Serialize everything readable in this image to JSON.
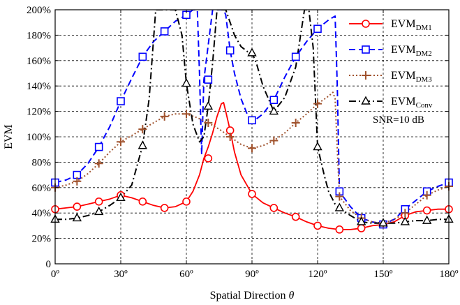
{
  "chart_data": {
    "type": "line",
    "title": "",
    "xlabel": "Spatial Direction",
    "xlabel_symbol": "θ",
    "ylabel": "EVM",
    "xlim": [
      0,
      180
    ],
    "ylim": [
      0,
      200
    ],
    "x_ticks": [
      0,
      30,
      60,
      90,
      120,
      150,
      180
    ],
    "x_tick_labels": [
      "0º",
      "30º",
      "60º",
      "90º",
      "120º",
      "150º",
      "180º"
    ],
    "y_ticks": [
      0,
      20,
      40,
      60,
      80,
      100,
      120,
      140,
      160,
      180,
      200
    ],
    "y_tick_labels": [
      "0",
      "20%",
      "40%",
      "60%",
      "80%",
      "100%",
      "120%",
      "140%",
      "160%",
      "180%",
      "200%"
    ],
    "grid": true,
    "legend_position": "top-right",
    "annotation": "SNR=10 dB",
    "series": [
      {
        "name": "EVM",
        "subscript": "DM1",
        "color": "#ff0000",
        "dash": "solid",
        "marker": "circle",
        "x": [
          0,
          5,
          10,
          15,
          20,
          25,
          30,
          35,
          40,
          45,
          50,
          55,
          60,
          63,
          66,
          68,
          70,
          72,
          74,
          76,
          77,
          78,
          80,
          82,
          85,
          90,
          95,
          100,
          105,
          110,
          115,
          120,
          125,
          130,
          135,
          140,
          145,
          150,
          155,
          160,
          165,
          170,
          175,
          180
        ],
        "y": [
          43,
          44,
          45,
          47,
          49,
          51,
          54,
          52,
          49,
          46,
          44,
          45,
          49,
          57,
          70,
          83,
          92,
          103,
          116,
          126,
          127,
          120,
          105,
          88,
          70,
          55,
          48,
          44,
          40,
          37,
          33,
          30,
          28,
          27,
          27,
          28,
          30,
          31,
          33,
          38,
          41,
          42,
          43,
          43
        ],
        "marker_x": [
          0,
          10,
          20,
          30,
          40,
          50,
          60,
          70,
          80,
          90,
          100,
          110,
          120,
          130,
          140,
          150,
          160,
          170,
          180
        ],
        "marker_y": [
          43,
          45,
          49,
          54,
          49,
          44,
          49,
          83,
          105,
          55,
          44,
          37,
          30,
          27,
          28,
          31,
          38,
          42,
          43
        ]
      },
      {
        "name": "EVM",
        "subscript": "DM2",
        "color": "#0000ff",
        "dash": "dash",
        "marker": "square",
        "x": [
          0,
          5,
          10,
          15,
          20,
          25,
          30,
          35,
          40,
          45,
          50,
          55,
          60,
          63,
          65,
          66,
          67,
          68,
          72,
          75,
          77,
          78,
          80,
          82,
          85,
          88,
          90,
          92,
          95,
          100,
          105,
          110,
          115,
          120,
          125,
          127,
          128,
          129,
          130,
          135,
          140,
          145,
          150,
          155,
          160,
          165,
          170,
          175,
          180
        ],
        "y": [
          64,
          66,
          70,
          79,
          92,
          108,
          128,
          146,
          163,
          175,
          183,
          191,
          196,
          200,
          200,
          150,
          86,
          145,
          200,
          200,
          200,
          196,
          168,
          150,
          130,
          117,
          113,
          114,
          118,
          129,
          147,
          163,
          175,
          185,
          192,
          194,
          195,
          140,
          57,
          45,
          36,
          33,
          31,
          35,
          43,
          50,
          57,
          61,
          64
        ],
        "marker_x": [
          0,
          10,
          20,
          30,
          40,
          50,
          60,
          70,
          80,
          90,
          100,
          110,
          120,
          130,
          140,
          150,
          160,
          170,
          180
        ],
        "marker_y": [
          64,
          70,
          92,
          128,
          163,
          183,
          196,
          145,
          168,
          113,
          129,
          163,
          185,
          57,
          36,
          31,
          43,
          57,
          64
        ]
      },
      {
        "name": "EVM",
        "subscript": "DM3",
        "color": "#a0522d",
        "dash": "dot",
        "marker": "plus",
        "x": [
          0,
          5,
          10,
          15,
          20,
          25,
          30,
          35,
          40,
          45,
          50,
          55,
          60,
          65,
          70,
          75,
          80,
          85,
          90,
          95,
          100,
          105,
          110,
          115,
          120,
          125,
          127,
          128,
          129,
          130,
          135,
          140,
          145,
          150,
          155,
          160,
          165,
          170,
          175,
          180
        ],
        "y": [
          60,
          62,
          65,
          71,
          79,
          88,
          96,
          101,
          106,
          111,
          116,
          118,
          118,
          115,
          111,
          106,
          100,
          94,
          91,
          93,
          97,
          103,
          111,
          118,
          126,
          132,
          135,
          130,
          90,
          53,
          42,
          36,
          33,
          32,
          35,
          40,
          47,
          54,
          58,
          61
        ],
        "marker_x": [
          0,
          10,
          20,
          30,
          40,
          50,
          60,
          70,
          80,
          90,
          100,
          110,
          120,
          130,
          140,
          150,
          160,
          170,
          180
        ],
        "marker_y": [
          60,
          65,
          79,
          96,
          106,
          116,
          118,
          111,
          100,
          91,
          97,
          111,
          126,
          53,
          36,
          32,
          40,
          54,
          61
        ]
      },
      {
        "name": "EVM",
        "subscript": "Conv",
        "color": "#000000",
        "dash": "dashdot",
        "marker": "triangle",
        "x": [
          0,
          5,
          10,
          15,
          20,
          25,
          30,
          35,
          40,
          43,
          46,
          48,
          50,
          55,
          58,
          60,
          63,
          66,
          68,
          70,
          72,
          74,
          76,
          78,
          80,
          82,
          85,
          88,
          90,
          92,
          95,
          100,
          105,
          110,
          114,
          116,
          118,
          120,
          123,
          125,
          128,
          130,
          135,
          140,
          145,
          150,
          155,
          160,
          165,
          170,
          175,
          180
        ],
        "y": [
          35,
          35,
          36,
          38,
          41,
          46,
          52,
          62,
          93,
          130,
          200,
          200,
          200,
          200,
          180,
          142,
          110,
          96,
          100,
          124,
          158,
          200,
          200,
          200,
          190,
          180,
          171,
          167,
          166,
          158,
          140,
          120,
          131,
          155,
          200,
          200,
          170,
          92,
          70,
          57,
          47,
          44,
          38,
          33,
          32,
          32,
          32,
          33,
          34,
          34,
          35,
          35
        ],
        "marker_x": [
          0,
          10,
          20,
          30,
          40,
          60,
          70,
          90,
          100,
          120,
          130,
          140,
          150,
          160,
          170,
          180
        ],
        "marker_y": [
          35,
          36,
          41,
          52,
          93,
          142,
          124,
          166,
          120,
          92,
          44,
          33,
          32,
          33,
          34,
          35
        ]
      }
    ]
  }
}
